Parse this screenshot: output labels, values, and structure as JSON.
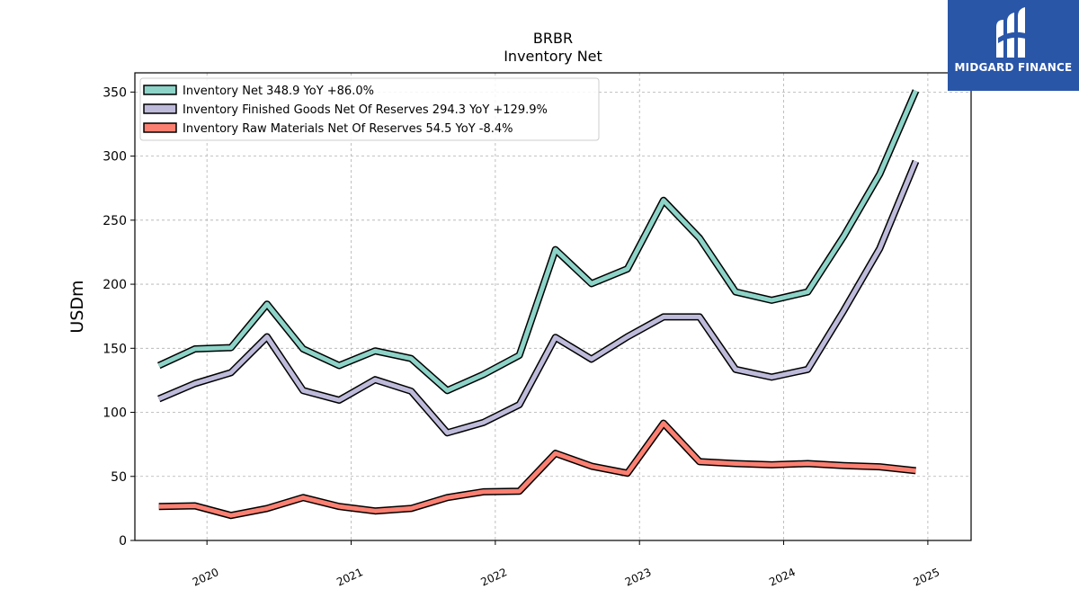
{
  "chart_data": {
    "type": "line",
    "title": "BRBR",
    "subtitle": "Inventory Net",
    "xlabel": "",
    "ylabel": "USDm",
    "ylim": [
      0,
      365
    ],
    "yticks": [
      0,
      50,
      100,
      150,
      200,
      250,
      300,
      350
    ],
    "xticks": [
      "2020",
      "2021",
      "2022",
      "2023",
      "2024",
      "2025"
    ],
    "grid": true,
    "legend_position": "top-left",
    "x": [
      "2019-09",
      "2019-12",
      "2020-03",
      "2020-06",
      "2020-09",
      "2020-12",
      "2021-03",
      "2021-06",
      "2021-09",
      "2021-12",
      "2022-03",
      "2022-06",
      "2022-09",
      "2022-12",
      "2023-03",
      "2023-06",
      "2023-09",
      "2023-12",
      "2024-03",
      "2024-06",
      "2024-09",
      "2024-12"
    ],
    "series": [
      {
        "name": "Inventory Net",
        "legend_label": "Inventory Net  348.9 YoY +86.0%",
        "color": "#8dd3c7",
        "values": [
          136.5,
          149.5,
          150.5,
          184.5,
          149.5,
          136.5,
          148.0,
          142.0,
          117.0,
          129.5,
          144.5,
          227.0,
          200.5,
          212.0,
          265.5,
          236.0,
          194.0,
          187.5,
          194.0,
          237.5,
          286.0,
          351.0
        ]
      },
      {
        "name": "Inventory Finished Goods Net Of Reserves",
        "legend_label": "Inventory Finished Goods Net Of Reserves  294.3 YoY +129.9%",
        "color": "#bebada",
        "values": [
          110.5,
          122.5,
          131.0,
          159.0,
          117.0,
          109.5,
          125.5,
          116.5,
          84.0,
          92.0,
          106.0,
          158.5,
          141.5,
          159.0,
          174.5,
          174.5,
          133.5,
          127.5,
          133.5,
          179.5,
          228.0,
          296.0
        ]
      },
      {
        "name": "Inventory Raw Materials Net Of Reserves",
        "legend_label": "Inventory Raw Materials Net Of Reserves  54.5 YoY -8.4%",
        "color": "#fb8072",
        "values": [
          26.5,
          27.0,
          19.5,
          25.0,
          33.5,
          26.5,
          23.0,
          25.0,
          33.5,
          38.0,
          38.5,
          68.0,
          58.0,
          52.5,
          91.5,
          61.5,
          60.0,
          59.0,
          60.0,
          58.5,
          57.5,
          54.5
        ]
      }
    ]
  },
  "branding": {
    "logo_text": "MIDGARD FINANCE",
    "logo_color": "#2a56a8"
  }
}
